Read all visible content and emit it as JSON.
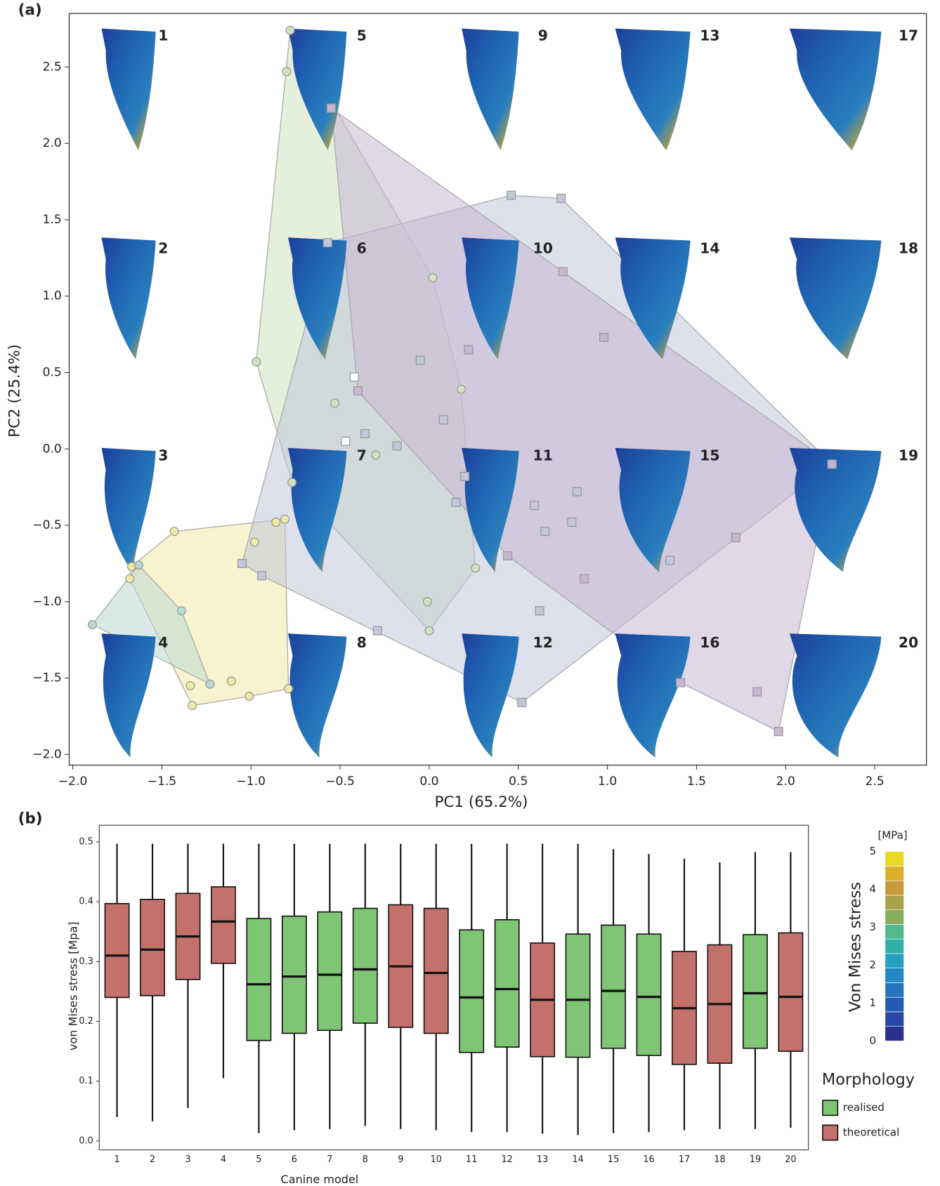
{
  "chart_data": [
    {
      "type": "scatter",
      "panel_label": "(a)",
      "x_label": "PC1 (65.2%)",
      "y_label": "PC2 (25.4%)",
      "xlim": [
        -2.02,
        2.79
      ],
      "ylim": [
        -2.07,
        2.85
      ],
      "xticks": [
        {
          "value": -2,
          "label": "−2.0"
        },
        {
          "value": -1.5,
          "label": "−1.5"
        },
        {
          "value": -1,
          "label": "−1.0"
        },
        {
          "value": -0.5,
          "label": "−0.5"
        },
        {
          "value": 0,
          "label": "0.0"
        },
        {
          "value": 0.5,
          "label": "0.5"
        },
        {
          "value": 1,
          "label": "1.0"
        },
        {
          "value": 1.5,
          "label": "1.5"
        },
        {
          "value": 2,
          "label": "2.0"
        },
        {
          "value": 2.5,
          "label": "2.5"
        }
      ],
      "yticks": [
        {
          "value": -2,
          "label": "−2.0"
        },
        {
          "value": -1.5,
          "label": "−1.5"
        },
        {
          "value": -1,
          "label": "−1.0"
        },
        {
          "value": -0.5,
          "label": "−0.5"
        },
        {
          "value": 0,
          "label": "0.0"
        },
        {
          "value": 0.5,
          "label": "0.5"
        },
        {
          "value": 1,
          "label": "1.0"
        },
        {
          "value": 1.5,
          "label": "1.5"
        },
        {
          "value": 2,
          "label": "2.0"
        },
        {
          "value": 2.5,
          "label": "2.5"
        }
      ],
      "hulls": true,
      "model_labels": [
        "1",
        "2",
        "3",
        "4",
        "5",
        "6",
        "7",
        "8",
        "9",
        "10",
        "11",
        "12",
        "13",
        "14",
        "15",
        "16",
        "17",
        "18",
        "19",
        "20"
      ],
      "series": [
        {
          "color": "#cfe3bf",
          "marker": "circle",
          "x": [
            -0.78,
            -0.8,
            0.02,
            -0.97,
            -0.53,
            0.18,
            -0.3,
            -0.77,
            0.26,
            -0.01,
            0.0
          ],
          "y": [
            2.74,
            2.47,
            1.12,
            0.57,
            0.3,
            0.39,
            -0.04,
            -0.22,
            -0.78,
            -1.0,
            -1.19
          ]
        },
        {
          "color": "#eeeaa6",
          "marker": "circle",
          "x": [
            -1.43,
            -0.81,
            -0.86,
            -0.98,
            -1.68,
            -1.34,
            -1.33,
            -1.11,
            -1.01,
            -0.79,
            -1.67
          ],
          "y": [
            -0.54,
            -0.46,
            -0.48,
            -0.61,
            -0.85,
            -1.55,
            -1.68,
            -1.52,
            -1.62,
            -1.57,
            -0.77
          ]
        },
        {
          "color": "#b9d9d2",
          "marker": "circle",
          "x": [
            -1.89,
            -1.63,
            -1.39,
            -1.23
          ],
          "y": [
            -1.15,
            -0.76,
            -1.06,
            -1.54
          ]
        },
        {
          "color": "#c3c7db",
          "marker": "square",
          "x": [
            0.46,
            0.74,
            -0.05,
            0.08,
            -0.18,
            -0.36,
            0.2,
            0.15,
            0.59,
            0.65,
            0.83,
            0.8,
            1.35,
            -1.05,
            -0.94,
            -0.29,
            0.62,
            0.52,
            -0.57,
            2.26
          ],
          "y": [
            1.66,
            1.64,
            0.58,
            0.19,
            0.02,
            0.1,
            -0.18,
            -0.35,
            -0.37,
            -0.54,
            -0.28,
            -0.48,
            -0.73,
            -0.75,
            -0.83,
            -1.19,
            -1.06,
            -1.66,
            1.35,
            -0.1
          ]
        },
        {
          "color": "#c7b6d3",
          "marker": "square",
          "x": [
            -0.55,
            0.75,
            0.98,
            0.22,
            -0.4,
            2.26,
            1.72,
            1.84,
            1.96,
            1.41,
            0.87,
            0.44
          ],
          "y": [
            2.23,
            1.16,
            0.73,
            0.65,
            0.38,
            -0.1,
            -0.58,
            -1.59,
            -1.85,
            -1.53,
            -0.85,
            -0.7
          ]
        },
        {
          "color": "#ffffff",
          "marker": "square",
          "x": [
            -0.42,
            -0.47
          ],
          "y": [
            0.47,
            0.05
          ]
        }
      ]
    },
    {
      "type": "box",
      "panel_label": "(b)",
      "x_label": "Canine model",
      "y_label": "von Mises stress [Mpa]",
      "categories": [
        "1",
        "2",
        "3",
        "4",
        "5",
        "6",
        "7",
        "8",
        "9",
        "10",
        "11",
        "12",
        "13",
        "14",
        "15",
        "16",
        "17",
        "18",
        "19",
        "20"
      ],
      "ylim": [
        -0.015,
        0.528
      ],
      "yticks": [
        {
          "value": 0,
          "label": "0.0"
        },
        {
          "value": 0.1,
          "label": "0.1"
        },
        {
          "value": 0.2,
          "label": "0.2"
        },
        {
          "value": 0.3,
          "label": "0.3"
        },
        {
          "value": 0.4,
          "label": "0.4"
        },
        {
          "value": 0.5,
          "label": "0.5"
        }
      ],
      "legend_title": "Morphology",
      "series": [
        {
          "name": "realised",
          "color": "#80c476",
          "boxes": [
            null,
            null,
            null,
            null,
            {
              "whislo": 0.013,
              "q1": 0.168,
              "med": 0.262,
              "q3": 0.372,
              "whishi": 0.497
            },
            {
              "whislo": 0.018,
              "q1": 0.18,
              "med": 0.275,
              "q3": 0.376,
              "whishi": 0.497
            },
            {
              "whislo": 0.02,
              "q1": 0.185,
              "med": 0.278,
              "q3": 0.383,
              "whishi": 0.497
            },
            {
              "whislo": 0.025,
              "q1": 0.197,
              "med": 0.287,
              "q3": 0.389,
              "whishi": 0.497
            },
            null,
            null,
            {
              "whislo": 0.015,
              "q1": 0.148,
              "med": 0.24,
              "q3": 0.353,
              "whishi": 0.497
            },
            {
              "whislo": 0.015,
              "q1": 0.157,
              "med": 0.254,
              "q3": 0.37,
              "whishi": 0.497
            },
            null,
            {
              "whislo": 0.01,
              "q1": 0.14,
              "med": 0.236,
              "q3": 0.346,
              "whishi": 0.497
            },
            {
              "whislo": 0.013,
              "q1": 0.155,
              "med": 0.251,
              "q3": 0.361,
              "whishi": 0.488
            },
            {
              "whislo": 0.015,
              "q1": 0.143,
              "med": 0.241,
              "q3": 0.346,
              "whishi": 0.48
            },
            null,
            null,
            {
              "whislo": 0.02,
              "q1": 0.155,
              "med": 0.247,
              "q3": 0.345,
              "whishi": 0.483
            },
            null
          ]
        },
        {
          "name": "theoretical",
          "color": "#c4716b",
          "boxes": [
            {
              "whislo": 0.04,
              "q1": 0.24,
              "med": 0.31,
              "q3": 0.397,
              "whishi": 0.497
            },
            {
              "whislo": 0.033,
              "q1": 0.243,
              "med": 0.32,
              "q3": 0.404,
              "whishi": 0.497
            },
            {
              "whislo": 0.055,
              "q1": 0.27,
              "med": 0.342,
              "q3": 0.414,
              "whishi": 0.497
            },
            {
              "whislo": 0.105,
              "q1": 0.297,
              "med": 0.367,
              "q3": 0.425,
              "whishi": 0.497
            },
            null,
            null,
            null,
            null,
            {
              "whislo": 0.02,
              "q1": 0.19,
              "med": 0.292,
              "q3": 0.395,
              "whishi": 0.497
            },
            {
              "whislo": 0.018,
              "q1": 0.18,
              "med": 0.281,
              "q3": 0.389,
              "whishi": 0.497
            },
            null,
            null,
            {
              "whislo": 0.012,
              "q1": 0.141,
              "med": 0.236,
              "q3": 0.331,
              "whishi": 0.497
            },
            null,
            null,
            null,
            {
              "whislo": 0.018,
              "q1": 0.128,
              "med": 0.222,
              "q3": 0.317,
              "whishi": 0.472
            },
            {
              "whislo": 0.02,
              "q1": 0.13,
              "med": 0.229,
              "q3": 0.328,
              "whishi": 0.466
            },
            null,
            {
              "whislo": 0.022,
              "q1": 0.15,
              "med": 0.241,
              "q3": 0.348,
              "whishi": 0.483
            }
          ]
        }
      ],
      "colorbar": {
        "title": "Von Mises stress",
        "unit": "[MPa]",
        "lim": [
          0,
          5
        ],
        "ticks": [
          0,
          1,
          2,
          3,
          4,
          5
        ],
        "colors": [
          "#2b2f8f",
          "#2846a6",
          "#255cb3",
          "#2873bf",
          "#2389c3",
          "#249fbf",
          "#2fb0a6",
          "#52b98b",
          "#89ad5e",
          "#a9a24a",
          "#c99a3b",
          "#dcae2e",
          "#e9d827"
        ]
      }
    }
  ]
}
